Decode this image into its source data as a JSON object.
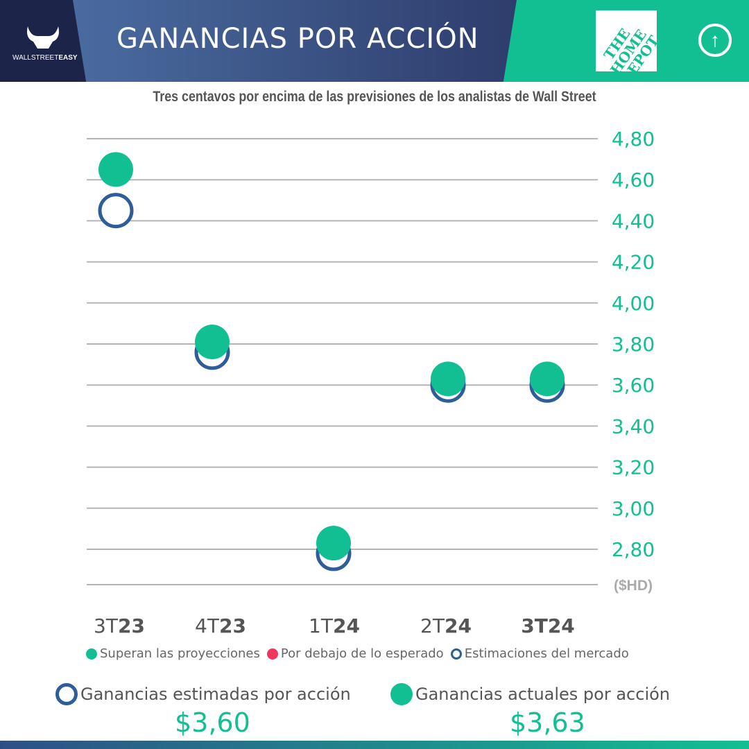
{
  "header": {
    "title": "GANANCIAS POR ACCIÓN",
    "brand_light": "WALLSTREET",
    "brand_bold": "EASY",
    "company_logo": "THE HOME DEPOT",
    "trend_icon": "arrow-up-circle-icon"
  },
  "colors": {
    "beat": "#12bf92",
    "miss": "#f0365f",
    "estimate": "#2e5d9a",
    "navy": "#1d2449"
  },
  "chart_data": {
    "type": "scatter",
    "title": "Tres centavos por encima de las previsiones de los analistas de Wall Street",
    "ylabel": "($HD)",
    "ylim": [
      2.7,
      4.8
    ],
    "yticks": [
      "4,80",
      "4,60",
      "4,40",
      "4,20",
      "4,00",
      "3,80",
      "3,60",
      "3,40",
      "3,20",
      "3,00",
      "2,80"
    ],
    "ytick_values": [
      4.8,
      4.6,
      4.4,
      4.2,
      4.0,
      3.8,
      3.6,
      3.4,
      3.2,
      3.0,
      2.8
    ],
    "grid": true,
    "categories": [
      {
        "pre": "3T",
        "post": "23",
        "all_bold": false
      },
      {
        "pre": "4T",
        "post": "23",
        "all_bold": false
      },
      {
        "pre": "1T",
        "post": "24",
        "all_bold": false
      },
      {
        "pre": "2T",
        "post": "24",
        "all_bold": false
      },
      {
        "pre": "3T",
        "post": "24",
        "all_bold": true
      }
    ],
    "series": [
      {
        "name": "Estimaciones del mercado",
        "values": [
          4.45,
          3.76,
          2.78,
          3.6,
          3.6
        ]
      },
      {
        "name": "Superan las proyecciones",
        "values": [
          4.65,
          3.81,
          2.83,
          3.63,
          3.63
        ]
      }
    ]
  },
  "legend": [
    "Superan las proyecciones",
    "Por debajo de lo esperado",
    "Estimaciones del mercado"
  ],
  "summary": {
    "estimated_label": "Ganancias estimadas por acción",
    "estimated_value": "$3,60",
    "actual_label": "Ganancias actuales por acción",
    "actual_value": "$3,63"
  }
}
